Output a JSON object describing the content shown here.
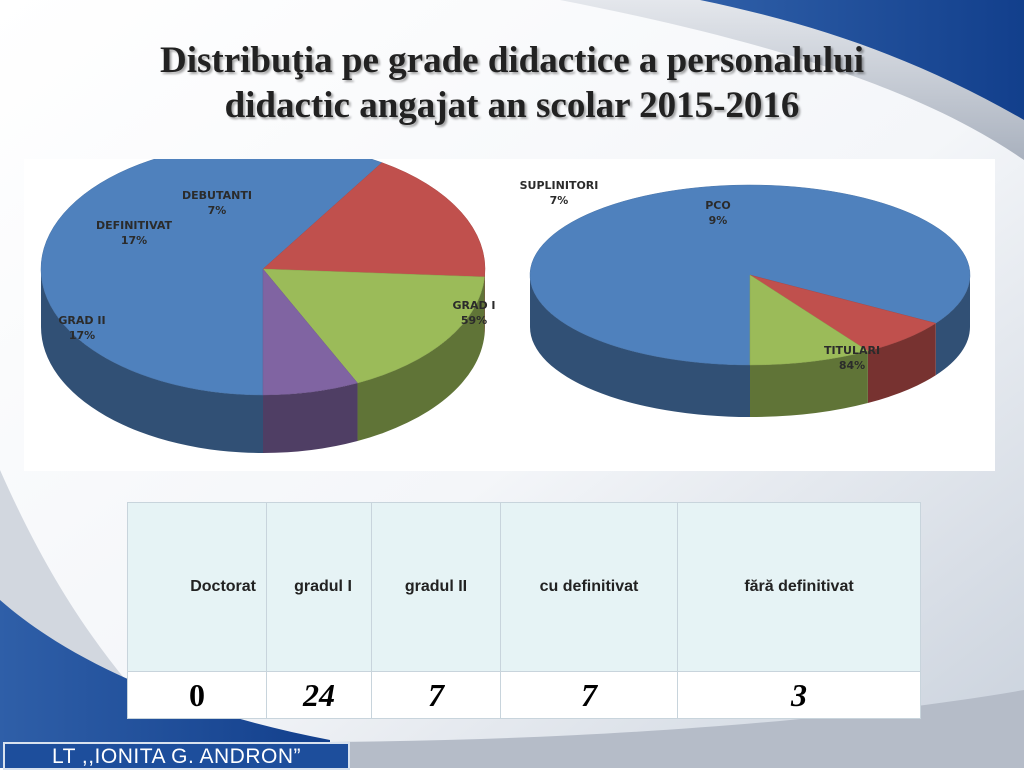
{
  "slide": {
    "title_line1": "Distribuţia pe grade didactice a personalului",
    "title_line2": "didactic angajat an scolar 2015-2016",
    "footer": "LT ,,IONITA G. ANDRON”"
  },
  "colors": {
    "blue": "#4f81bd",
    "red": "#c0504d",
    "green": "#9bbb59",
    "purple": "#8064a2",
    "footer_bg": "#1d4e9c",
    "table_header_bg": "#e6f3f5"
  },
  "chart_data": [
    {
      "type": "pie",
      "style": "3d",
      "title": "",
      "slices": [
        {
          "label": "GRAD I",
          "value": 59,
          "display": "59%",
          "color": "#4f81bd"
        },
        {
          "label": "GRAD II",
          "value": 17,
          "display": "17%",
          "color": "#c0504d"
        },
        {
          "label": "DEFINITIVAT",
          "value": 17,
          "display": "17%",
          "color": "#9bbb59"
        },
        {
          "label": "DEBUTANTI",
          "value": 7,
          "display": "7%",
          "color": "#8064a2"
        }
      ]
    },
    {
      "type": "pie",
      "style": "3d",
      "title": "",
      "slices": [
        {
          "label": "TITULARI",
          "value": 84,
          "display": "84%",
          "color": "#4f81bd"
        },
        {
          "label": "SUPLINITORI",
          "value": 7,
          "display": "7%",
          "color": "#c0504d"
        },
        {
          "label": "PCO",
          "value": 9,
          "display": "9%",
          "color": "#9bbb59"
        }
      ]
    }
  ],
  "table": {
    "headers": {
      "doctorat": "Doctorat",
      "gradul_i": "gradul I",
      "gradul_ii": "gradul II",
      "cu_definitivat": "cu definitivat",
      "fara_definitivat": "fără definitivat"
    },
    "values": {
      "doctorat": "0",
      "gradul_i": "24",
      "gradul_ii": "7",
      "cu_definitivat": "7",
      "fara_definitivat": "3"
    }
  }
}
